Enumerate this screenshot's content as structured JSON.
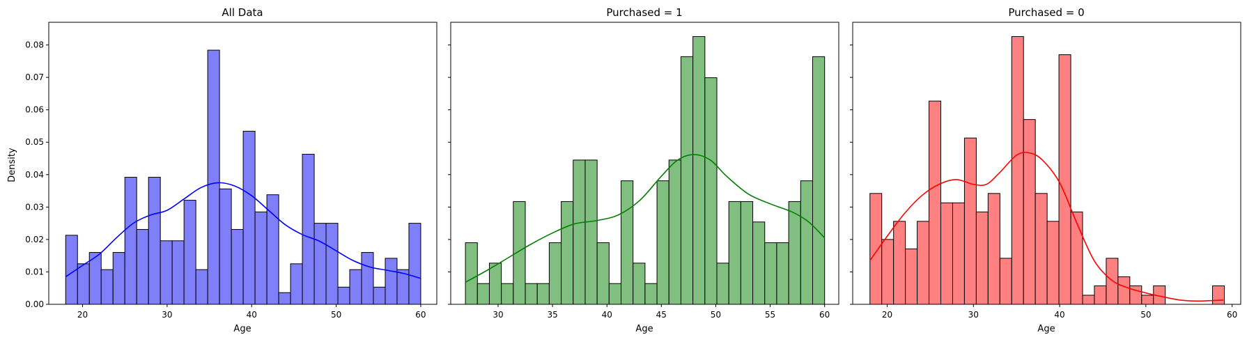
{
  "chart_data": [
    {
      "type": "histogram",
      "title": "All Data",
      "xlabel": "Age",
      "ylabel": "Density",
      "xlim": [
        16,
        61.9
      ],
      "ylim": [
        0,
        0.087
      ],
      "xticks": [
        20,
        30,
        40,
        50,
        60
      ],
      "yticks": [
        0.0,
        0.01,
        0.02,
        0.03,
        0.04,
        0.05,
        0.06,
        0.07,
        0.08
      ],
      "bin_start": 18,
      "bin_width": 1.4,
      "values": [
        0.0213,
        0.0125,
        0.016,
        0.0107,
        0.016,
        0.0392,
        0.0231,
        0.0392,
        0.0196,
        0.0196,
        0.0321,
        0.0107,
        0.0784,
        0.0356,
        0.0231,
        0.0534,
        0.0285,
        0.0338,
        0.0036,
        0.0125,
        0.0463,
        0.025,
        0.025,
        0.0053,
        0.0107,
        0.016,
        0.0053,
        0.0142,
        0.0107,
        0.025
      ],
      "kde": [
        [
          18,
          0.0085
        ],
        [
          20,
          0.012
        ],
        [
          22,
          0.0155
        ],
        [
          24,
          0.0205
        ],
        [
          26,
          0.025
        ],
        [
          28,
          0.0275
        ],
        [
          30,
          0.029
        ],
        [
          32,
          0.0325
        ],
        [
          34,
          0.036
        ],
        [
          36,
          0.0375
        ],
        [
          38,
          0.0365
        ],
        [
          40,
          0.0335
        ],
        [
          42,
          0.029
        ],
        [
          44,
          0.0245
        ],
        [
          46,
          0.0215
        ],
        [
          48,
          0.0195
        ],
        [
          50,
          0.0165
        ],
        [
          52,
          0.0135
        ],
        [
          54,
          0.0115
        ],
        [
          56,
          0.0105
        ],
        [
          58,
          0.0095
        ],
        [
          60,
          0.008
        ]
      ],
      "fill_color": "#7f7ffa",
      "line_color": "#0000ff"
    },
    {
      "type": "histogram",
      "title": "Purchased = 1",
      "xlabel": "Age",
      "ylabel": "",
      "xlim": [
        25.65,
        61.3
      ],
      "ylim": [
        0,
        0.087
      ],
      "xticks": [
        30,
        35,
        40,
        45,
        50,
        55,
        60
      ],
      "yticks": [
        0.0,
        0.01,
        0.02,
        0.03,
        0.04,
        0.05,
        0.06,
        0.07,
        0.08
      ],
      "bin_start": 27,
      "bin_width": 1.1,
      "values": [
        0.019,
        0.0064,
        0.0127,
        0.0064,
        0.0317,
        0.0064,
        0.0064,
        0.019,
        0.0317,
        0.0445,
        0.0445,
        0.019,
        0.0064,
        0.0381,
        0.0127,
        0.0064,
        0.0381,
        0.0445,
        0.0764,
        0.0826,
        0.0699,
        0.0127,
        0.0317,
        0.0317,
        0.0254,
        0.019,
        0.019,
        0.0317,
        0.0381,
        0.0764
      ],
      "kde": [
        [
          27,
          0.0068
        ],
        [
          29,
          0.0105
        ],
        [
          31,
          0.0145
        ],
        [
          33,
          0.0185
        ],
        [
          35,
          0.022
        ],
        [
          37,
          0.0248
        ],
        [
          39,
          0.0258
        ],
        [
          41,
          0.0275
        ],
        [
          43,
          0.032
        ],
        [
          45,
          0.0395
        ],
        [
          46.5,
          0.0445
        ],
        [
          48,
          0.0462
        ],
        [
          49.5,
          0.0445
        ],
        [
          51,
          0.0395
        ],
        [
          53,
          0.034
        ],
        [
          55,
          0.031
        ],
        [
          57,
          0.0285
        ],
        [
          58.5,
          0.0255
        ],
        [
          60,
          0.0205
        ]
      ],
      "fill_color": "#80bf80",
      "line_color": "#008000"
    },
    {
      "type": "histogram",
      "title": "Purchased = 0",
      "xlabel": "Age",
      "ylabel": "",
      "xlim": [
        16,
        61
      ],
      "ylim": [
        0,
        0.087
      ],
      "xticks": [
        20,
        30,
        40,
        50,
        60
      ],
      "yticks": [
        0.0,
        0.01,
        0.02,
        0.03,
        0.04,
        0.05,
        0.06,
        0.07,
        0.08
      ],
      "bin_start": 18,
      "bin_width": 1.37,
      "values": [
        0.0342,
        0.02,
        0.0256,
        0.0171,
        0.0256,
        0.0627,
        0.0313,
        0.0313,
        0.0513,
        0.0285,
        0.0342,
        0.0142,
        0.0826,
        0.057,
        0.0342,
        0.0256,
        0.077,
        0.0285,
        0.0028,
        0.0057,
        0.0142,
        0.0085,
        0.0057,
        0.0028,
        0.0057,
        0,
        0,
        0,
        0,
        0.0057
      ],
      "kde": [
        [
          18,
          0.0135
        ],
        [
          20,
          0.021
        ],
        [
          22,
          0.028
        ],
        [
          24,
          0.0335
        ],
        [
          26,
          0.037
        ],
        [
          28,
          0.0385
        ],
        [
          30,
          0.037
        ],
        [
          31.5,
          0.037
        ],
        [
          33,
          0.0405
        ],
        [
          35,
          0.046
        ],
        [
          36.5,
          0.0467
        ],
        [
          38,
          0.0445
        ],
        [
          40,
          0.0375
        ],
        [
          42,
          0.025
        ],
        [
          44,
          0.0135
        ],
        [
          46,
          0.0075
        ],
        [
          48,
          0.005
        ],
        [
          50,
          0.0035
        ],
        [
          52,
          0.0023
        ],
        [
          54,
          0.0013
        ],
        [
          56,
          0.001
        ],
        [
          58,
          0.0012
        ],
        [
          59,
          0.0013
        ]
      ],
      "fill_color": "#ff8080",
      "line_color": "#ff0000"
    }
  ]
}
